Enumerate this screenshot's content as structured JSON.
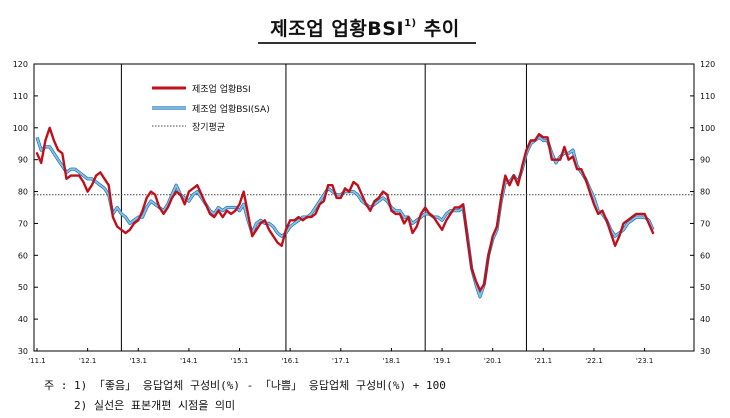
{
  "title": {
    "main": "제조업 업황BSI",
    "sup": "1)",
    "suffix": "추이"
  },
  "notes": [
    "주 : 1) 「좋음」 응답업체 구성비(%) - 「나쁨」 응답업체 구성비(%) + 100",
    "2) 실선은 표본개편 시점을 의미"
  ],
  "chart_data": {
    "type": "line",
    "x_tick_labels": [
      "'11.1",
      "'12.1",
      "'13.1",
      "'14.1",
      "'15.1",
      "'16.1",
      "'17.1",
      "'18.1",
      "'19.1",
      "'20.1",
      "'21.1",
      "'22.1",
      "'23.1"
    ],
    "ylim": [
      30,
      120
    ],
    "y_ticks": [
      30,
      40,
      50,
      60,
      70,
      80,
      90,
      100,
      110,
      120
    ],
    "grid": false,
    "legend_position": "top-left",
    "vertical_markers": [
      "2012-09",
      "2015-12",
      "2018-09",
      "2020-09"
    ],
    "long_term_average": 79,
    "series": [
      {
        "name": "제조업 업황BSI",
        "color": "#c0101a",
        "values": [
          92,
          89,
          96,
          100,
          96,
          93,
          92,
          84,
          85,
          85,
          85,
          83,
          80,
          82,
          85,
          86,
          84,
          82,
          72,
          69,
          68,
          67,
          68,
          70,
          71,
          74,
          78,
          80,
          79,
          75,
          73,
          75,
          78,
          80,
          79,
          76,
          80,
          81,
          82,
          79,
          76,
          73,
          72,
          74,
          72,
          74,
          73,
          74,
          76,
          80,
          73,
          66,
          68,
          70,
          71,
          68,
          66,
          64,
          63,
          68,
          71,
          71,
          72,
          71,
          72,
          72,
          73,
          76,
          77,
          82,
          82,
          78,
          78,
          81,
          80,
          83,
          82,
          79,
          76,
          74,
          77,
          78,
          80,
          79,
          74,
          73,
          73,
          70,
          72,
          67,
          69,
          73,
          75,
          73,
          72,
          70,
          68,
          71,
          73,
          75,
          75,
          76,
          65,
          56,
          52,
          49,
          51,
          60,
          66,
          69,
          78,
          85,
          82,
          85,
          82,
          88,
          93,
          96,
          96,
          98,
          97,
          97,
          90,
          90,
          90,
          94,
          90,
          91,
          87,
          87,
          84,
          80,
          76,
          73,
          74,
          71,
          67,
          63,
          66,
          70,
          71,
          72,
          73,
          73,
          73,
          70,
          67
        ],
        "first_month": "2011-01"
      },
      {
        "name": "제조업 업황BSI(SA)",
        "color": "#7ec3ee",
        "values": [
          97,
          93,
          94,
          94,
          92,
          90,
          88,
          86,
          87,
          87,
          86,
          85,
          84,
          84,
          83,
          82,
          81,
          79,
          73,
          75,
          73,
          72,
          70,
          71,
          72,
          72,
          75,
          77,
          76,
          75,
          74,
          76,
          79,
          82,
          79,
          78,
          77,
          79,
          80,
          78,
          76,
          74,
          73,
          75,
          74,
          75,
          75,
          75,
          74,
          76,
          71,
          67,
          70,
          71,
          70,
          70,
          69,
          67,
          66,
          67,
          69,
          70,
          71,
          72,
          72,
          73,
          75,
          77,
          79,
          81,
          80,
          79,
          79,
          80,
          80,
          80,
          79,
          77,
          76,
          75,
          76,
          77,
          78,
          77,
          75,
          74,
          74,
          72,
          72,
          70,
          71,
          72,
          73,
          73,
          72,
          72,
          71,
          73,
          74,
          74,
          74,
          75,
          66,
          56,
          51,
          47,
          51,
          60,
          65,
          68,
          77,
          83,
          83,
          85,
          83,
          87,
          92,
          95,
          96,
          97,
          96,
          96,
          92,
          89,
          91,
          92,
          92,
          93,
          88,
          86,
          84,
          81,
          78,
          74,
          73,
          71,
          68,
          66,
          67,
          68,
          70,
          71,
          72,
          72,
          72,
          71,
          68
        ],
        "first_month": "2011-01"
      },
      {
        "name": "장기평균",
        "color": "#444444",
        "style": "dotted",
        "values": [
          79
        ]
      }
    ]
  }
}
